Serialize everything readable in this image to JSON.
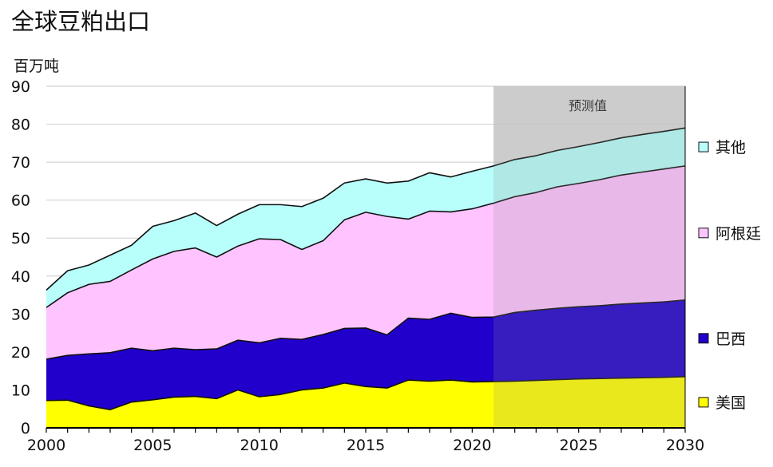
{
  "chart_data": {
    "type": "area",
    "title": "全球豆粕出口",
    "ylabel": "百万吨",
    "xlabel": "",
    "xlim": [
      2000,
      2030
    ],
    "ylim": [
      0,
      90
    ],
    "x_ticks": [
      2000,
      2005,
      2010,
      2015,
      2020,
      2025,
      2030
    ],
    "y_ticks": [
      0,
      10,
      20,
      30,
      40,
      50,
      60,
      70,
      80,
      90
    ],
    "grid": "horizontal",
    "stacked": true,
    "forecast": {
      "start": 2021,
      "end": 2030,
      "label": "预测值",
      "color": "#dcdcdc"
    },
    "legend_position": "right",
    "x": [
      2000,
      2001,
      2002,
      2003,
      2004,
      2005,
      2006,
      2007,
      2008,
      2009,
      2010,
      2011,
      2012,
      2013,
      2014,
      2015,
      2016,
      2017,
      2018,
      2019,
      2020,
      2021,
      2022,
      2023,
      2024,
      2025,
      2026,
      2027,
      2028,
      2029,
      2030
    ],
    "series": [
      {
        "name": "美国",
        "color": "#ffff00",
        "values": [
          7.2,
          7.3,
          5.8,
          4.8,
          6.8,
          7.4,
          8.1,
          8.3,
          7.7,
          10.0,
          8.2,
          8.8,
          10.0,
          10.5,
          11.8,
          10.9,
          10.5,
          12.6,
          12.3,
          12.6,
          12.1,
          12.2,
          12.3,
          12.5,
          12.7,
          12.9,
          13.0,
          13.1,
          13.2,
          13.3,
          13.5
        ]
      },
      {
        "name": "巴西",
        "color": "#2200cc",
        "values": [
          10.9,
          11.8,
          13.7,
          15.0,
          14.2,
          12.9,
          12.9,
          12.3,
          13.1,
          13.1,
          14.2,
          14.8,
          13.3,
          14.1,
          14.4,
          15.4,
          14.0,
          16.3,
          16.3,
          17.6,
          17.0,
          17.0,
          18.1,
          18.5,
          18.8,
          19.0,
          19.2,
          19.5,
          19.7,
          19.9,
          20.2
        ]
      },
      {
        "name": "阿根廷",
        "color": "#ffc4ff",
        "values": [
          13.6,
          16.5,
          18.3,
          18.8,
          20.6,
          24.2,
          25.5,
          26.8,
          24.2,
          24.8,
          27.4,
          26.0,
          23.7,
          24.7,
          28.6,
          30.5,
          31.2,
          26.1,
          28.5,
          26.7,
          28.6,
          30.0,
          30.5,
          31.0,
          32.0,
          32.5,
          33.2,
          34.0,
          34.5,
          35.0,
          35.3
        ]
      },
      {
        "name": "其他",
        "color": "#b8fffb",
        "values": [
          4.6,
          5.8,
          5.1,
          6.9,
          6.5,
          8.6,
          8.1,
          9.2,
          8.3,
          8.4,
          9.0,
          9.2,
          11.3,
          11.2,
          9.7,
          8.8,
          8.8,
          10.0,
          10.1,
          9.2,
          9.9,
          9.8,
          9.8,
          9.7,
          9.6,
          9.7,
          9.8,
          9.8,
          9.9,
          9.9,
          10.0
        ]
      }
    ]
  }
}
